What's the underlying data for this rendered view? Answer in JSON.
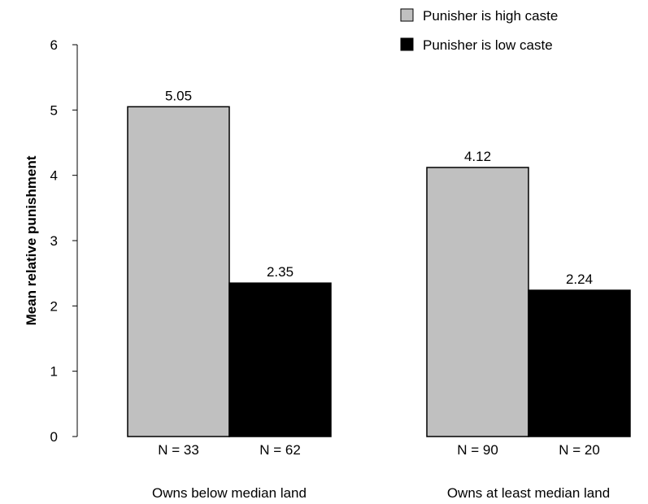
{
  "chart_data": {
    "type": "bar",
    "title": "",
    "xlabel": "",
    "ylabel": "Mean relative punishment",
    "ylim": [
      0,
      6
    ],
    "yticks": [
      "0",
      "1",
      "2",
      "3",
      "4",
      "5",
      "6"
    ],
    "categories": [
      "Owns below median land",
      "Owns at least median land"
    ],
    "legend_position": "top-right",
    "series": [
      {
        "name": "Punisher is high caste",
        "color": "#c0c0c0",
        "values": [
          5.05,
          4.12
        ],
        "value_labels": [
          "5.05",
          "4.12"
        ],
        "n_labels": [
          "N = 33",
          "N = 90"
        ]
      },
      {
        "name": "Punisher is low caste",
        "color": "#000000",
        "values": [
          2.35,
          2.24
        ],
        "value_labels": [
          "2.35",
          "2.24"
        ],
        "n_labels": [
          "N = 62",
          "N = 20"
        ]
      }
    ]
  }
}
